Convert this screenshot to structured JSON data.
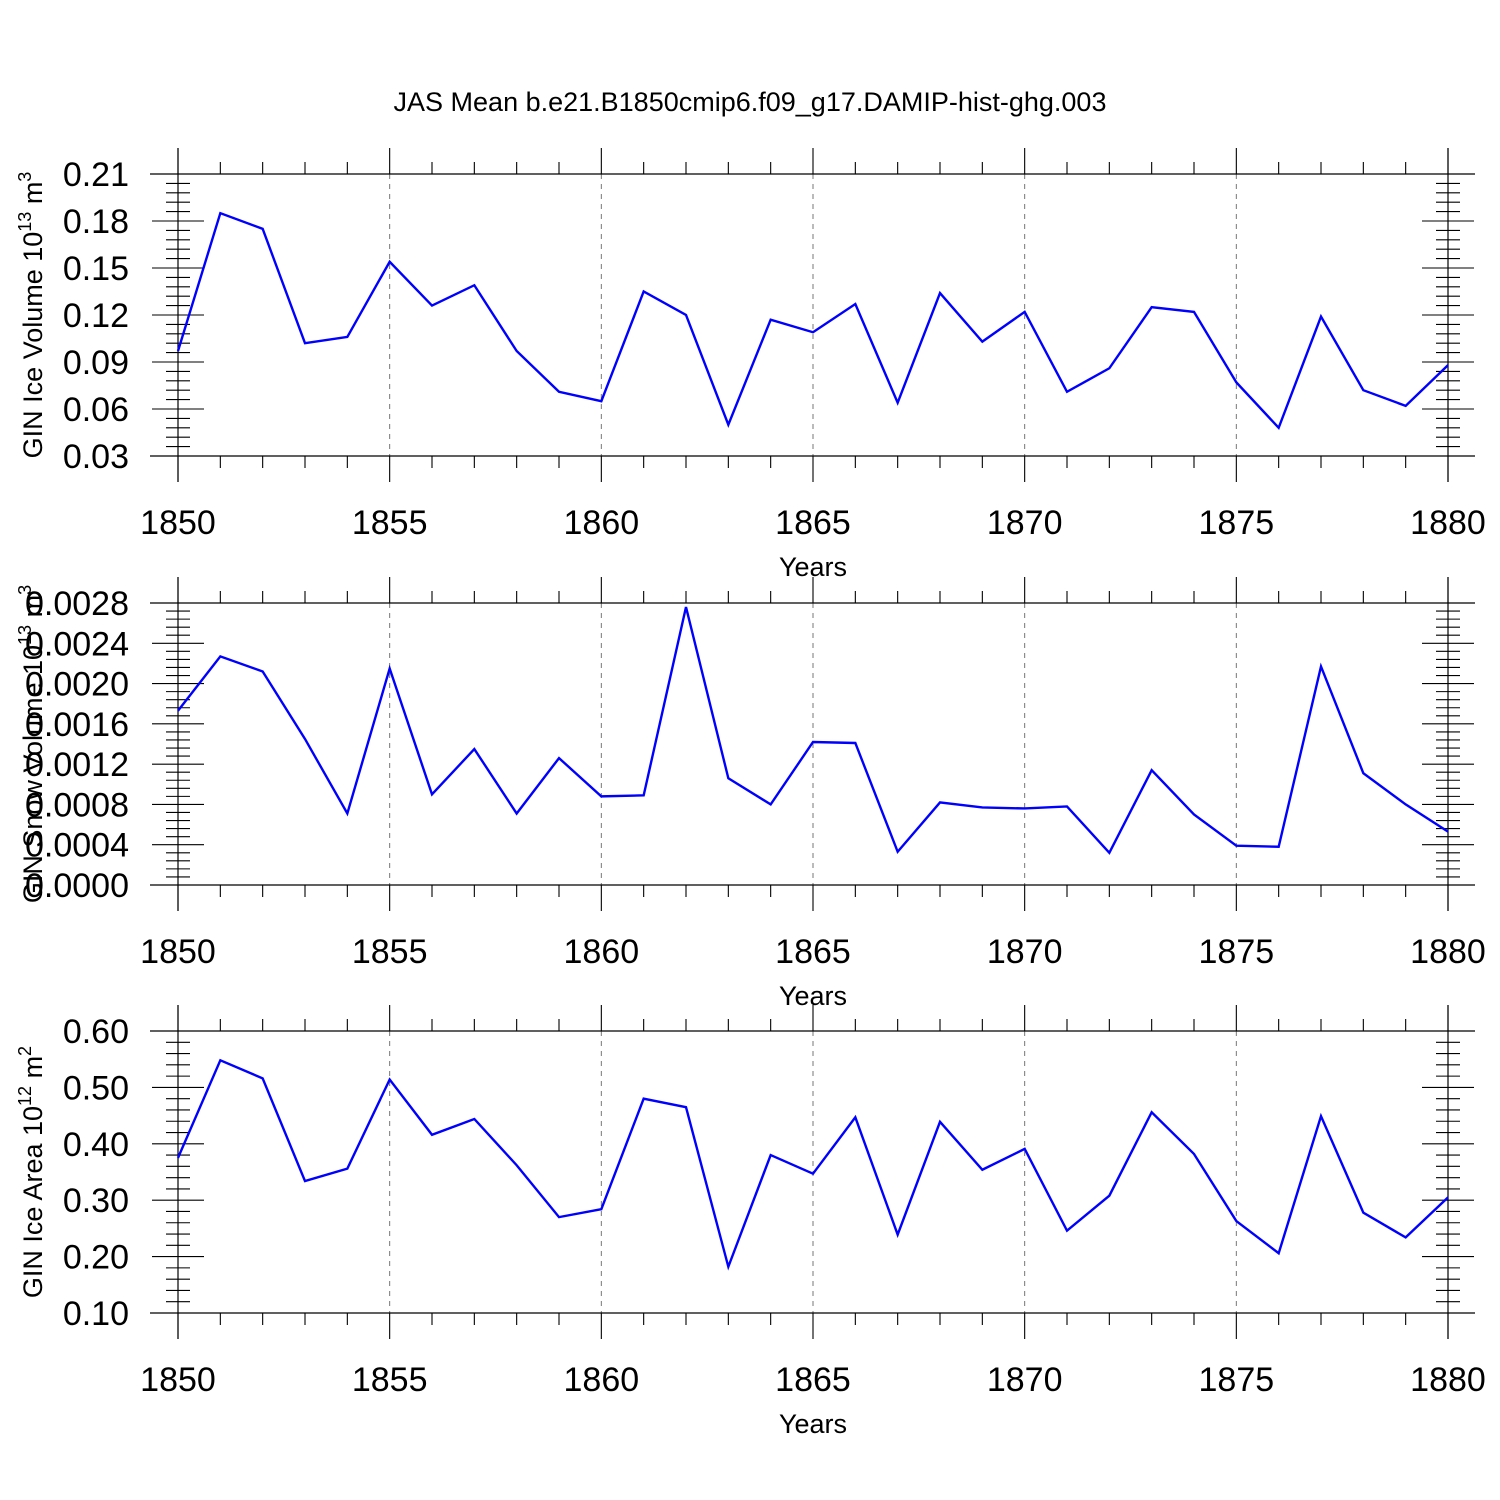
{
  "figure": {
    "title": "JAS Mean b.e21.B1850cmip6.f09_g17.DAMIP-hist-ghg.003"
  },
  "chart_data": [
    {
      "type": "line",
      "title": "",
      "xlabel": "Years",
      "ylabel": "GIN Ice Volume 10",
      "ylabel_sup": "13",
      "ylabel_unit": " m",
      "ylabel_unit_sup": "3",
      "xlim": [
        1850,
        1880
      ],
      "ylim": [
        0.03,
        0.21
      ],
      "xticks": [
        1850,
        1855,
        1860,
        1865,
        1870,
        1875,
        1880
      ],
      "yticks": [
        0.03,
        0.06,
        0.09,
        0.12,
        0.15,
        0.18,
        0.21
      ],
      "ytick_decimals": 2,
      "ytick_labels": [
        "0.03",
        "0.06",
        "0.09",
        "0.12",
        "0.15",
        "0.18",
        "0.21"
      ],
      "grid": "vertical dashed at major x ticks",
      "series": [
        {
          "color": "#0000ff",
          "x": [
            1850,
            1851,
            1852,
            1853,
            1854,
            1855,
            1856,
            1857,
            1858,
            1859,
            1860,
            1861,
            1862,
            1863,
            1864,
            1865,
            1866,
            1867,
            1868,
            1869,
            1870,
            1871,
            1872,
            1873,
            1874,
            1875,
            1876,
            1877,
            1878,
            1879,
            1880
          ],
          "values": [
            0.097,
            0.185,
            0.175,
            0.102,
            0.106,
            0.154,
            0.126,
            0.139,
            0.097,
            0.071,
            0.065,
            0.135,
            0.12,
            0.05,
            0.117,
            0.109,
            0.127,
            0.064,
            0.134,
            0.103,
            0.122,
            0.071,
            0.086,
            0.125,
            0.122,
            0.077,
            0.048,
            0.119,
            0.072,
            0.062,
            0.088
          ]
        }
      ]
    },
    {
      "type": "line",
      "title": "",
      "xlabel": "Years",
      "ylabel": "GIN Snow Volume 10",
      "ylabel_sup": "13",
      "ylabel_unit": " m",
      "ylabel_unit_sup": "3",
      "xlim": [
        1850,
        1880
      ],
      "ylim": [
        0.0,
        0.0028
      ],
      "xticks": [
        1850,
        1855,
        1860,
        1865,
        1870,
        1875,
        1880
      ],
      "yticks": [
        0.0,
        0.0004,
        0.0008,
        0.0012,
        0.0016,
        0.002,
        0.0024,
        0.0028
      ],
      "ytick_decimals": 4,
      "ytick_labels": [
        "0.0000",
        "0.0004",
        "0.0008",
        "0.0012",
        "0.0016",
        "0.0020",
        "0.0024",
        "0.0028"
      ],
      "grid": "vertical dashed at major x ticks",
      "series": [
        {
          "color": "#0000ff",
          "x": [
            1850,
            1851,
            1852,
            1853,
            1854,
            1855,
            1856,
            1857,
            1858,
            1859,
            1860,
            1861,
            1862,
            1863,
            1864,
            1865,
            1866,
            1867,
            1868,
            1869,
            1870,
            1871,
            1872,
            1873,
            1874,
            1875,
            1876,
            1877,
            1878,
            1879,
            1880
          ],
          "values": [
            0.00173,
            0.00227,
            0.00212,
            0.00145,
            0.00071,
            0.00215,
            0.0009,
            0.00135,
            0.00071,
            0.00126,
            0.00088,
            0.00089,
            0.00276,
            0.00106,
            0.0008,
            0.00142,
            0.00141,
            0.00033,
            0.00082,
            0.00077,
            0.00076,
            0.00078,
            0.00032,
            0.00114,
            0.0007,
            0.00039,
            0.00038,
            0.00217,
            0.00111,
            0.0008,
            0.00053
          ]
        }
      ]
    },
    {
      "type": "line",
      "title": "",
      "xlabel": "Years",
      "ylabel": "GIN Ice Area 10",
      "ylabel_sup": "12",
      "ylabel_unit": " m",
      "ylabel_unit_sup": "2",
      "xlim": [
        1850,
        1880
      ],
      "ylim": [
        0.1,
        0.6
      ],
      "xticks": [
        1850,
        1855,
        1860,
        1865,
        1870,
        1875,
        1880
      ],
      "yticks": [
        0.1,
        0.2,
        0.3,
        0.4,
        0.5,
        0.6
      ],
      "ytick_decimals": 2,
      "ytick_labels": [
        "0.10",
        "0.20",
        "0.30",
        "0.40",
        "0.50",
        "0.60"
      ],
      "grid": "vertical dashed at major x ticks",
      "series": [
        {
          "color": "#0000ff",
          "x": [
            1850,
            1851,
            1852,
            1853,
            1854,
            1855,
            1856,
            1857,
            1858,
            1859,
            1860,
            1861,
            1862,
            1863,
            1864,
            1865,
            1866,
            1867,
            1868,
            1869,
            1870,
            1871,
            1872,
            1873,
            1874,
            1875,
            1876,
            1877,
            1878,
            1879,
            1880
          ],
          "values": [
            0.375,
            0.548,
            0.516,
            0.334,
            0.356,
            0.514,
            0.416,
            0.444,
            0.362,
            0.27,
            0.284,
            0.48,
            0.465,
            0.182,
            0.38,
            0.347,
            0.447,
            0.239,
            0.439,
            0.354,
            0.391,
            0.246,
            0.308,
            0.456,
            0.382,
            0.263,
            0.206,
            0.449,
            0.278,
            0.234,
            0.305
          ]
        }
      ]
    }
  ]
}
